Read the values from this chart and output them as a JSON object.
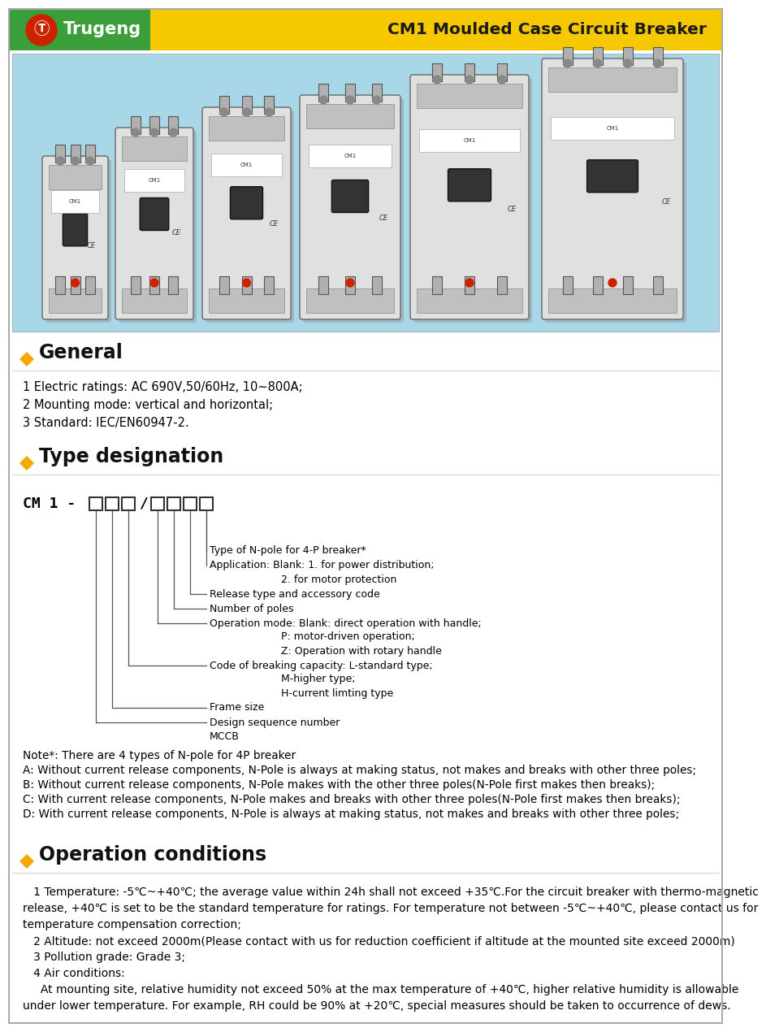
{
  "header_green_color": "#3a9e3a",
  "header_yellow_color": "#f5c800",
  "brand_name": "Trugeng",
  "title": "CM1 Moulded Case Circuit Breaker",
  "diamond_color": "#f5a800",
  "section_general_title": "General",
  "general_lines": [
    "1 Electric ratings: AC 690V,50/60Hz, 10~800A;",
    "2 Mounting mode: vertical and horizontal;",
    "3 Standard: IEC/EN60947-2."
  ],
  "section_type_title": "Type designation",
  "note_lines": [
    "Note*: There are 4 types of N-pole for 4P breaker",
    "A: Without current release components, N-Pole is always at making status, not makes and breaks with other three poles;",
    "B: Without current release components, N-Pole makes with the other three poles(N-Pole first makes then breaks);",
    "C: With current release components, N-Pole makes and breaks with other three poles(N-Pole first makes then breaks);",
    "D: With current release components, N-Pole is always at making status, not makes and breaks with other three poles;"
  ],
  "section_operation_title": "Operation conditions",
  "operation_lines": [
    "   1 Temperature: -5℃~+40℃; the average value within 24h shall not exceed +35℃.For the circuit breaker with thermo-magnetic",
    "release, +40℃ is set to be the standard temperature for ratings. For temperature not between -5℃~+40℃, please contact us for",
    "temperature compensation correction;",
    "   2 Altitude: not exceed 2000m(Please contact with us for reduction coefficient if altitude at the mounted site exceed 2000m)",
    "   3 Pollution grade: Grade 3;",
    "   4 Air conditions:",
    "     At mounting site, relative humidity not exceed 50% at the max temperature of +40℃, higher relative humidity is allowable",
    "under lower temperature. For example, RH could be 90% at +20℃, special measures should be taken to occurrence of dews."
  ],
  "bg_color": "#ffffff",
  "text_color": "#000000",
  "teal_bg": "#a8d8e8",
  "teal_dark": "#7bbdd0"
}
